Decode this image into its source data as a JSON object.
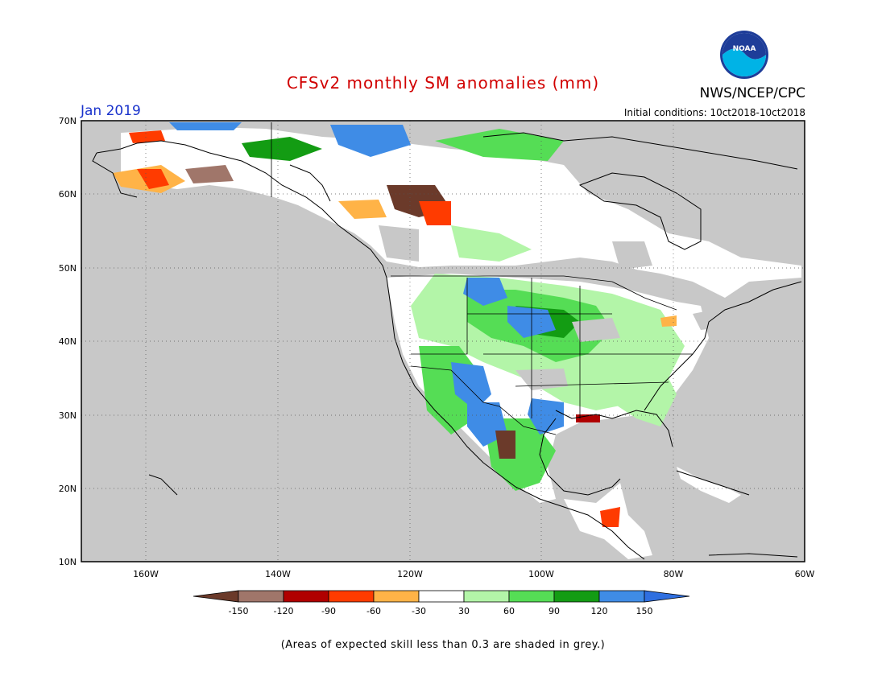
{
  "title": "CFSv2 monthly SM anomalies (mm)",
  "month": "Jan 2019",
  "org": "NWS/NCEP/CPC",
  "logo_text": "NOAA",
  "initial_conditions": "Initial conditions: 10ct2018-10ct2018",
  "lat_labels": [
    "70N",
    "60N",
    "50N",
    "40N",
    "30N",
    "20N",
    "10N"
  ],
  "lon_labels": [
    "160W",
    "140W",
    "120W",
    "100W",
    "80W",
    "60W"
  ],
  "colorbar": {
    "labels": [
      "-150",
      "-120",
      "-90",
      "-60",
      "-30",
      "30",
      "60",
      "90",
      "120",
      "150"
    ],
    "colors": [
      "#6b3a2a",
      "#a0766a",
      "#b00000",
      "#ff3b00",
      "#ffb347",
      "#ffffff",
      "#b3f5a8",
      "#55dd55",
      "#139c13",
      "#3f8ce6",
      "#2f6fe0"
    ]
  },
  "footnote": "(Areas of expected skill less than 0.3 are shaded in grey.)",
  "colors": {
    "grey_skill": "#c8c8c8",
    "title": "#d10000",
    "month": "#1a33cc"
  }
}
